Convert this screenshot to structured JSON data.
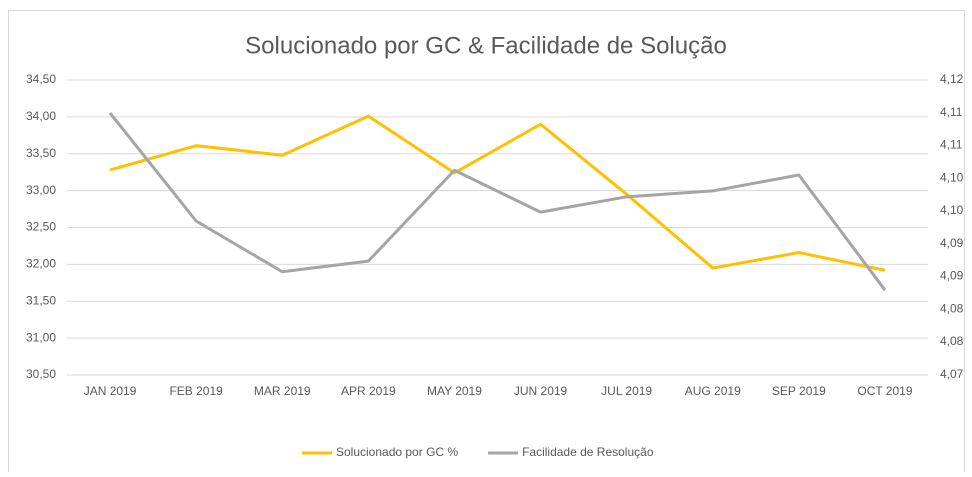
{
  "chart_data": {
    "type": "line",
    "title": "Solucionado por GC & Facilidade de Solução",
    "categories": [
      "JAN 2019",
      "FEB 2019",
      "MAR 2019",
      "APR 2019",
      "MAY 2019",
      "JUN 2019",
      "JUL 2019",
      "AUG 2019",
      "SEP 2019",
      "OCT 2019"
    ],
    "series": [
      {
        "name": "Solucionado por GC %",
        "color": "#FFC000",
        "axis": "y",
        "values": [
          33.28,
          33.61,
          33.48,
          34.01,
          33.24,
          33.9,
          32.95,
          31.95,
          32.16,
          31.92
        ]
      },
      {
        "name": "Facilidade de Resolução",
        "color": "#A5A5A5",
        "axis": "y2",
        "values": [
          4.1144,
          4.0961,
          4.0875,
          4.0893,
          4.1047,
          4.0976,
          4.1002,
          4.1012,
          4.1039,
          4.0844
        ]
      }
    ],
    "ylim": [
      30.5,
      34.5
    ],
    "yticks": [
      {
        "value": 30.5,
        "label": "30,50"
      },
      {
        "value": 31,
        "label": "31,00"
      },
      {
        "value": 31.5,
        "label": "31,50"
      },
      {
        "value": 32,
        "label": "32,00"
      },
      {
        "value": 32.5,
        "label": "32,50"
      },
      {
        "value": 33,
        "label": "33,00"
      },
      {
        "value": 33.5,
        "label": "33,50"
      },
      {
        "value": 34,
        "label": "34,00"
      },
      {
        "value": 34.5,
        "label": "34,50"
      }
    ],
    "y2lim": [
      4.07,
      4.12
    ],
    "y2ticks": [
      {
        "value": 4.07,
        "label": "4,07"
      },
      {
        "value": 4.0756,
        "label": "4,08"
      },
      {
        "value": 4.0811,
        "label": "4,08"
      },
      {
        "value": 4.0867,
        "label": "4,09"
      },
      {
        "value": 4.0922,
        "label": "4,09"
      },
      {
        "value": 4.0978,
        "label": "4,10"
      },
      {
        "value": 4.1033,
        "label": "4,10"
      },
      {
        "value": 4.1089,
        "label": "4,11"
      },
      {
        "value": 4.1144,
        "label": "4,11"
      },
      {
        "value": 4.12,
        "label": "4,12"
      }
    ],
    "grid": true,
    "legend": "bottom"
  }
}
